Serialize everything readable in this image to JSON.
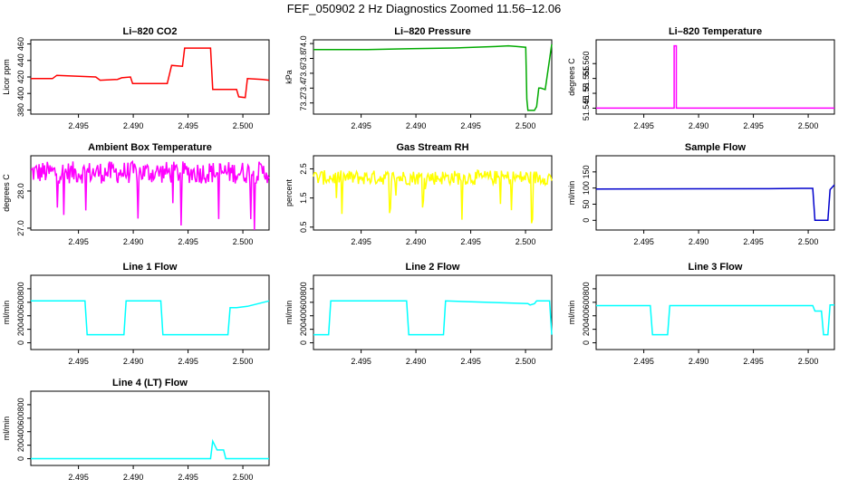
{
  "figure_title": "FEF_050902  2 Hz Diagnostics Zoomed 11.56–12.06",
  "chart_data": [
    {
      "type": "line",
      "title": "Li–820 CO2",
      "xlabel": "",
      "ylabel": "Licor ppm",
      "color": "#ff0000",
      "xlim": [
        2.4915,
        2.5025
      ],
      "ylim": [
        375,
        465
      ],
      "xticks": [
        "2.495",
        "2.490",
        "2.495",
        "2.500"
      ],
      "yticks": [
        "380",
        "400",
        "420",
        "440",
        "460"
      ],
      "series": [
        {
          "x": [
            2.4915,
            2.4925,
            2.4927,
            2.4945,
            2.4947,
            2.4955,
            2.4957,
            2.4961,
            2.4962,
            2.4978,
            2.498,
            2.4985,
            2.4986,
            2.4998,
            2.4999,
            2.501,
            2.5011,
            2.5014,
            2.5015,
            2.5022,
            2.5025
          ],
          "y": [
            418,
            418,
            422,
            420,
            416,
            417,
            419,
            420,
            412,
            412,
            434,
            433,
            455,
            455,
            405,
            405,
            396,
            395,
            418,
            417,
            416
          ]
        }
      ]
    },
    {
      "type": "line",
      "title": "Li–820 Pressure",
      "xlabel": "",
      "ylabel": "kPa",
      "color": "#00aa00",
      "xlim": [
        2.4915,
        2.5025
      ],
      "ylim": [
        73.05,
        74.05
      ],
      "xticks": [
        "2.495",
        "2.490",
        "2.495",
        "2.500"
      ],
      "yticks": [
        "73.2",
        "73.4",
        "73.6",
        "73.8",
        "74.0"
      ],
      "series": [
        {
          "x": [
            2.4915,
            2.494,
            2.496,
            2.498,
            2.4999,
            2.5005,
            2.5009,
            2.5013,
            2.50135,
            2.5014,
            2.5017,
            2.5018,
            2.5019,
            2.502,
            2.5022,
            2.5025
          ],
          "y": [
            73.92,
            73.92,
            73.93,
            73.94,
            73.96,
            73.97,
            73.96,
            73.95,
            73.25,
            73.1,
            73.1,
            73.15,
            73.4,
            73.4,
            73.38,
            73.99
          ]
        }
      ]
    },
    {
      "type": "line",
      "title": "Li–820 Temperature",
      "xlabel": "",
      "ylabel": "degrees C",
      "color": "#ff00ff",
      "xlim": [
        2.4915,
        2.5025
      ],
      "ylim": [
        51.543,
        51.568
      ],
      "xticks": [
        "2.495",
        "2.490",
        "2.495",
        "2.500"
      ],
      "yticks": [
        "51.545",
        "51.55",
        "51.555",
        "51.560"
      ],
      "series": [
        {
          "x": [
            2.4915,
            2.4951,
            2.4951,
            2.4952,
            2.4952,
            2.5025
          ],
          "y": [
            51.545,
            51.545,
            51.566,
            51.566,
            51.545,
            51.545
          ]
        }
      ]
    },
    {
      "type": "line",
      "title": "Ambient Box Temperature",
      "xlabel": "",
      "ylabel": "degrees C",
      "color": "#ff00ff",
      "xlim": [
        2.4915,
        2.5025
      ],
      "ylim": [
        26.95,
        28.95
      ],
      "xticks": [
        "2.495",
        "2.490",
        "2.495",
        "2.500"
      ],
      "yticks": [
        "27.0",
        "28.0"
      ],
      "series": [
        {
          "x": [
            2.4915,
            2.5025
          ],
          "y": [
            28.5,
            28.5
          ],
          "noise": 0.3
        }
      ]
    },
    {
      "type": "line",
      "title": "Gas Stream RH",
      "xlabel": "",
      "ylabel": "percent",
      "color": "#ffff00",
      "xlim": [
        2.4915,
        2.5025
      ],
      "ylim": [
        0.4,
        2.95
      ],
      "xticks": [
        "2.495",
        "2.490",
        "2.495",
        "2.500"
      ],
      "yticks": [
        "0.5",
        "1.5",
        "2.5"
      ],
      "series": [
        {
          "x": [
            2.4915,
            2.5025
          ],
          "y": [
            2.2,
            2.2
          ],
          "noise": 0.25
        }
      ]
    },
    {
      "type": "line",
      "title": "Sample Flow",
      "xlabel": "",
      "ylabel": "ml/min",
      "color": "#0000cc",
      "xlim": [
        2.4915,
        2.5025
      ],
      "ylim": [
        -30,
        200
      ],
      "xticks": [
        "2.495",
        "2.490",
        "2.495",
        "2.500"
      ],
      "yticks": [
        "0",
        "50",
        "100",
        "150"
      ],
      "series": [
        {
          "x": [
            2.4915,
            2.4995,
            2.501,
            2.5015,
            2.5016,
            2.5022,
            2.5023,
            2.5025
          ],
          "y": [
            97,
            98,
            99,
            99,
            0,
            0,
            95,
            110
          ]
        }
      ]
    },
    {
      "type": "line",
      "title": "Line 1 Flow",
      "xlabel": "",
      "ylabel": "ml/min",
      "color": "#00ffff",
      "xlim": [
        2.4915,
        2.5025
      ],
      "ylim": [
        -100,
        1000
      ],
      "xticks": [
        "2.495",
        "2.490",
        "2.495",
        "2.500"
      ],
      "yticks": [
        "0",
        "200",
        "400",
        "600",
        "800"
      ],
      "series": [
        {
          "x": [
            2.4915,
            2.494,
            2.4941,
            2.4958,
            2.4959,
            2.4975,
            2.4976,
            2.5006,
            2.5007,
            2.501,
            2.5015,
            2.5025
          ],
          "y": [
            620,
            620,
            120,
            120,
            620,
            620,
            120,
            120,
            520,
            520,
            540,
            620
          ]
        }
      ]
    },
    {
      "type": "line",
      "title": "Line 2 Flow",
      "xlabel": "",
      "ylabel": "ml/min",
      "color": "#00ffff",
      "xlim": [
        2.4915,
        2.5025
      ],
      "ylim": [
        -100,
        1000
      ],
      "xticks": [
        "2.495",
        "2.490",
        "2.495",
        "2.500"
      ],
      "yticks": [
        "0",
        "200",
        "400",
        "600",
        "800"
      ],
      "series": [
        {
          "x": [
            2.4915,
            2.4922,
            2.4923,
            2.4958,
            2.4959,
            2.4975,
            2.4976,
            2.5014,
            2.5015,
            2.5017,
            2.5018,
            2.5024,
            2.5025
          ],
          "y": [
            120,
            120,
            620,
            620,
            120,
            120,
            620,
            580,
            560,
            580,
            620,
            620,
            120
          ]
        }
      ]
    },
    {
      "type": "line",
      "title": "Line 3 Flow",
      "xlabel": "",
      "ylabel": "ml/min",
      "color": "#00ffff",
      "xlim": [
        2.4915,
        2.5025
      ],
      "ylim": [
        -100,
        1000
      ],
      "xticks": [
        "2.495",
        "2.490",
        "2.495",
        "2.500"
      ],
      "yticks": [
        "0",
        "200",
        "400",
        "600",
        "800"
      ],
      "series": [
        {
          "x": [
            2.4915,
            2.494,
            2.4941,
            2.4948,
            2.4949,
            2.5015,
            2.5016,
            2.5019,
            2.502,
            2.5022,
            2.5023,
            2.5025
          ],
          "y": [
            550,
            550,
            120,
            120,
            550,
            550,
            470,
            470,
            120,
            120,
            560,
            560
          ]
        }
      ]
    },
    {
      "type": "line",
      "title": "Line 4 (LT) Flow",
      "xlabel": "",
      "ylabel": "ml/min",
      "color": "#00ffff",
      "xlim": [
        2.4915,
        2.5025
      ],
      "ylim": [
        -100,
        1000
      ],
      "xticks": [
        "2.495",
        "2.490",
        "2.495",
        "2.500"
      ],
      "yticks": [
        "0",
        "200",
        "400",
        "600",
        "800"
      ],
      "series": [
        {
          "x": [
            2.4915,
            2.4998,
            2.4999,
            2.5001,
            2.5004,
            2.5005,
            2.5025
          ],
          "y": [
            0,
            0,
            260,
            130,
            130,
            0,
            0
          ]
        }
      ]
    }
  ]
}
